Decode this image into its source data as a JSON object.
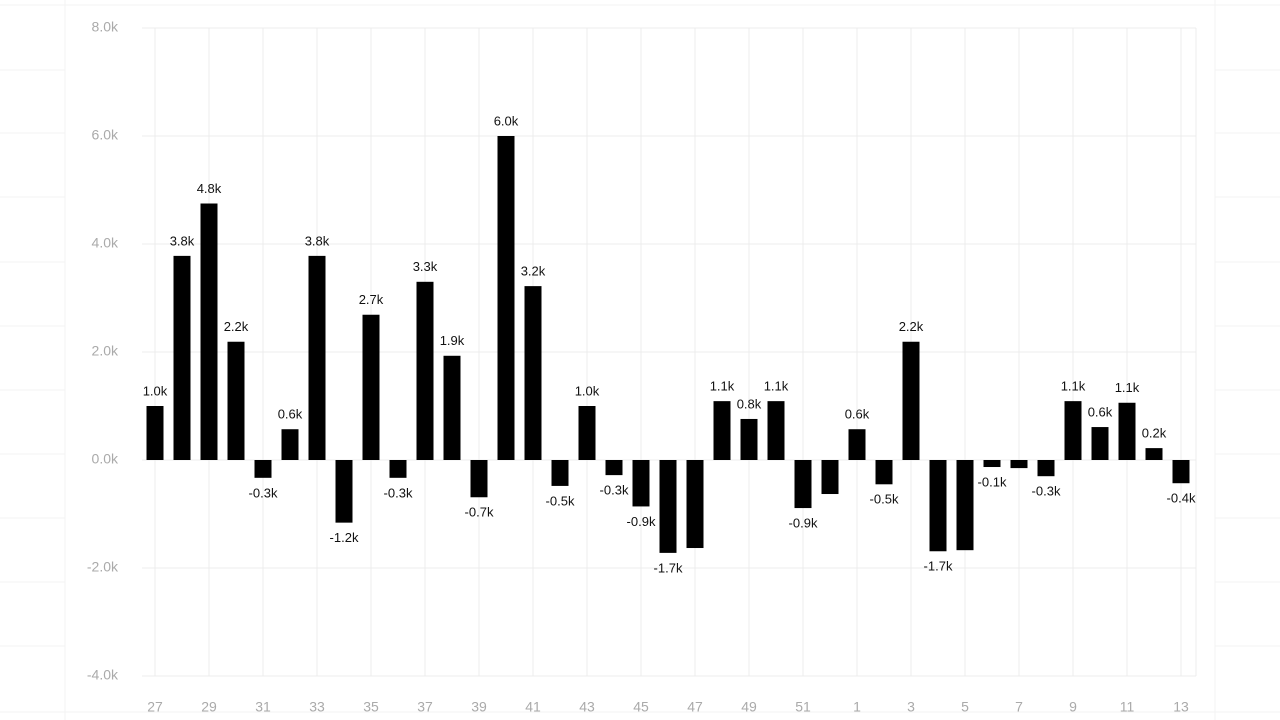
{
  "chart_data": {
    "type": "bar",
    "categories": [
      "27",
      null,
      "29",
      null,
      "31",
      null,
      "33",
      null,
      "35",
      null,
      "37",
      null,
      "39",
      null,
      "41",
      null,
      "43",
      null,
      "45",
      null,
      "47",
      null,
      "49",
      null,
      "51",
      null,
      "1",
      null,
      "3",
      null,
      "5",
      null,
      "7",
      null,
      "9",
      null,
      "11",
      null,
      "13"
    ],
    "values": [
      1000,
      3780,
      4750,
      2190,
      -330,
      570,
      3780,
      -1160,
      2690,
      -330,
      3300,
      1930,
      -690,
      6000,
      3220,
      -480,
      1000,
      -280,
      -860,
      -1720,
      -1630,
      1090,
      760,
      1090,
      -890,
      -630,
      570,
      -450,
      2190,
      -1690,
      -1670,
      -130,
      -150,
      -300,
      1090,
      610,
      1060,
      220,
      -430
    ],
    "value_labels": [
      "1.0k",
      "3.8k",
      "4.8k",
      "2.2k",
      "-0.3k",
      "0.6k",
      "3.8k",
      "-1.2k",
      "2.7k",
      "-0.3k",
      "3.3k",
      "1.9k",
      "-0.7k",
      "6.0k",
      "3.2k",
      "-0.5k",
      "1.0k",
      "-0.3k",
      "-0.9k",
      "-1.7k",
      null,
      "1.1k",
      "0.8k",
      "1.1k",
      "-0.9k",
      null,
      "0.6k",
      "-0.5k",
      "2.2k",
      "-1.7k",
      null,
      "-0.1k",
      null,
      "-0.3k",
      "1.1k",
      "0.6k",
      "1.1k",
      "0.2k",
      "-0.4k"
    ],
    "color": "#000000",
    "ylim": [
      -4000,
      8000
    ],
    "yticks": [
      {
        "value": -4000,
        "label": "-4.0k"
      },
      {
        "value": -2000,
        "label": "-2.0k"
      },
      {
        "value": 0,
        "label": "0.0k"
      },
      {
        "value": 2000,
        "label": "2.0k"
      },
      {
        "value": 4000,
        "label": "4.0k"
      },
      {
        "value": 6000,
        "label": "6.0k"
      },
      {
        "value": 8000,
        "label": "8.0k"
      }
    ],
    "grid": true
  }
}
